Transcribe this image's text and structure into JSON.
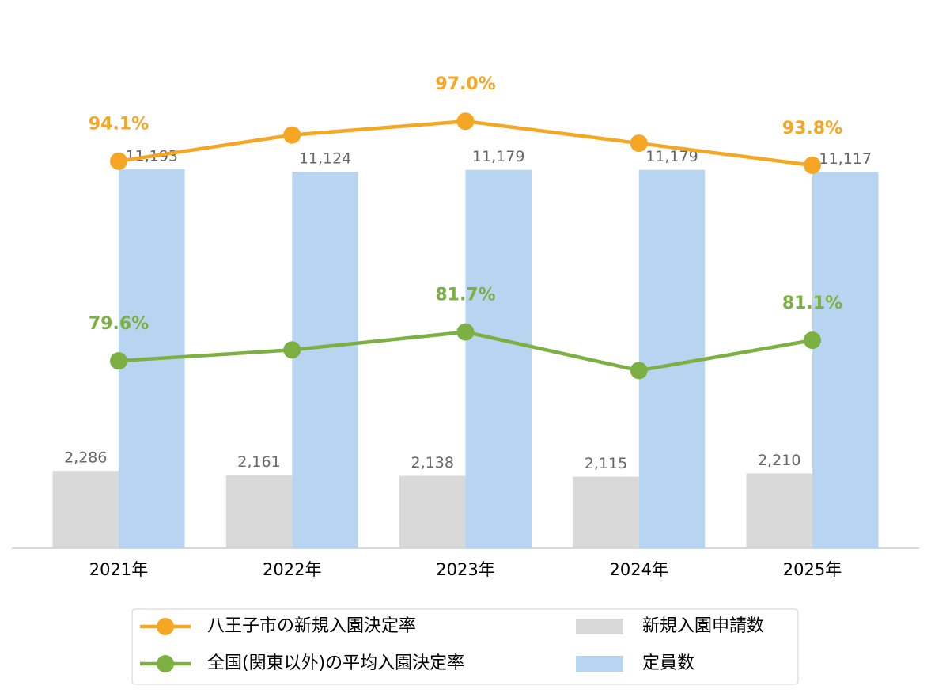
{
  "chart_data": {
    "type": "bar",
    "categories": [
      "2021年",
      "2022年",
      "2023年",
      "2024年",
      "2025年"
    ],
    "ylim": [
      0,
      14000
    ],
    "y2lim": [
      66,
      100.4
    ],
    "legend": "bottom",
    "series": [
      {
        "name": "八王子市の新規入園決定率",
        "type": "line",
        "axis": "y2",
        "color": "#f5a623",
        "values": [
          94.1,
          96.0,
          97.0,
          95.4,
          93.8
        ],
        "value_labels": [
          "94.1%",
          null,
          "97.0%",
          null,
          "93.8%"
        ]
      },
      {
        "name": "全国(関東以外)の平均入園決定率",
        "type": "line",
        "axis": "y2",
        "color": "#7cb042",
        "values": [
          79.6,
          80.4,
          81.7,
          78.9,
          81.1
        ],
        "value_labels": [
          "79.6%",
          null,
          "81.7%",
          null,
          "81.1%"
        ]
      },
      {
        "name": "新規入園申請数",
        "type": "bar",
        "color": "#d9d9d9",
        "values": [
          2286,
          2161,
          2138,
          2115,
          2210
        ],
        "value_labels": [
          "2,286",
          "2,161",
          "2,138",
          "2,115",
          "2,210"
        ]
      },
      {
        "name": "定員数",
        "type": "bar",
        "color": "#b7d5f0",
        "values": [
          11193,
          11124,
          11179,
          11179,
          11117
        ],
        "value_labels": [
          "11,193",
          "11,124",
          "11,179",
          "11,179",
          "11,117"
        ]
      }
    ]
  }
}
